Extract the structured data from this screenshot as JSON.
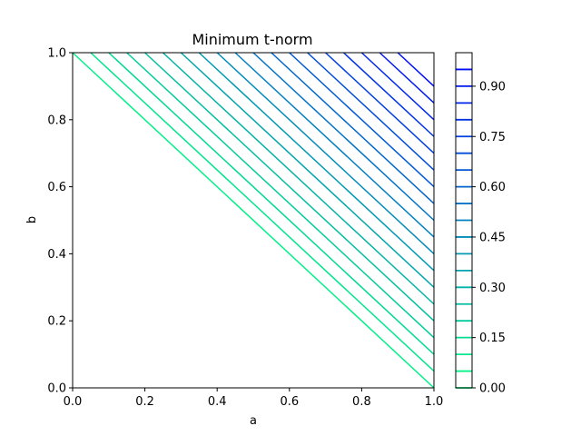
{
  "chart_data": {
    "type": "contour",
    "title": "Minimum t-norm",
    "xlabel": "a",
    "ylabel": "b",
    "xlim": [
      0.0,
      1.0
    ],
    "ylim": [
      0.0,
      1.0
    ],
    "x_ticks": [
      "0.0",
      "0.2",
      "0.4",
      "0.6",
      "0.8",
      "1.0"
    ],
    "y_ticks": [
      "0.0",
      "0.2",
      "0.4",
      "0.6",
      "0.8",
      "1.0"
    ],
    "levels": [
      0.0,
      0.05,
      0.1,
      0.15,
      0.2,
      0.25,
      0.3,
      0.35,
      0.4,
      0.45,
      0.5,
      0.55,
      0.6,
      0.65,
      0.7,
      0.75,
      0.8,
      0.85,
      0.9,
      0.95
    ],
    "contour_lines": [
      {
        "level": 0.05,
        "a_plus_b": 1.0
      },
      {
        "level": 0.1,
        "a_plus_b": 1.05
      },
      {
        "level": 0.15,
        "a_plus_b": 1.1
      },
      {
        "level": 0.2,
        "a_plus_b": 1.15
      },
      {
        "level": 0.25,
        "a_plus_b": 1.2
      },
      {
        "level": 0.3,
        "a_plus_b": 1.25
      },
      {
        "level": 0.35,
        "a_plus_b": 1.3
      },
      {
        "level": 0.4,
        "a_plus_b": 1.35
      },
      {
        "level": 0.45,
        "a_plus_b": 1.4
      },
      {
        "level": 0.5,
        "a_plus_b": 1.45
      },
      {
        "level": 0.55,
        "a_plus_b": 1.5
      },
      {
        "level": 0.6,
        "a_plus_b": 1.55
      },
      {
        "level": 0.65,
        "a_plus_b": 1.6
      },
      {
        "level": 0.7,
        "a_plus_b": 1.65
      },
      {
        "level": 0.75,
        "a_plus_b": 1.7
      },
      {
        "level": 0.8,
        "a_plus_b": 1.75
      },
      {
        "level": 0.85,
        "a_plus_b": 1.8
      },
      {
        "level": 0.9,
        "a_plus_b": 1.85
      },
      {
        "level": 0.95,
        "a_plus_b": 1.9
      }
    ],
    "colorbar": {
      "ticks": [
        "0.00",
        "0.15",
        "0.30",
        "0.45",
        "0.60",
        "0.75",
        "0.90"
      ],
      "tick_values": [
        0.0,
        0.15,
        0.3,
        0.45,
        0.6,
        0.75,
        0.9
      ],
      "range": [
        0.0,
        1.0
      ]
    },
    "colormap": {
      "low": "#00ff80",
      "high": "#0000ff"
    },
    "grid": false
  }
}
